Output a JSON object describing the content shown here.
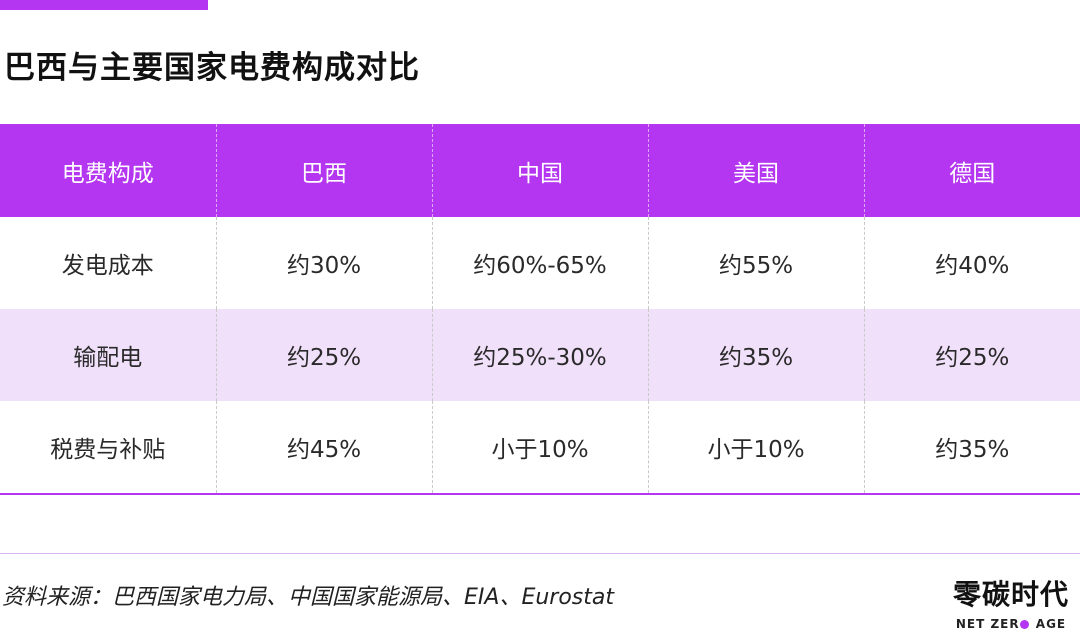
{
  "title": "巴西与主要国家电费构成对比",
  "table": {
    "headers": [
      "电费构成",
      "巴西",
      "中国",
      "美国",
      "德国"
    ],
    "rows": [
      [
        "发电成本",
        "约30%",
        "约60%-65%",
        "约55%",
        "约40%"
      ],
      [
        "输配电",
        "约25%",
        "约25%-30%",
        "约35%",
        "约25%"
      ],
      [
        "税费与补贴",
        "约45%",
        "小于10%",
        "小于10%",
        "约35%"
      ]
    ]
  },
  "source": "资料来源：巴西国家电力局、中国国家能源局、EIA、Eurostat",
  "brand": {
    "name_cn": "零碳时代",
    "name_en_before": "NET ZER",
    "name_en_after": "AGE"
  },
  "colors": {
    "accent": "#b436f0",
    "highlight_row": "#f1e0fa"
  }
}
